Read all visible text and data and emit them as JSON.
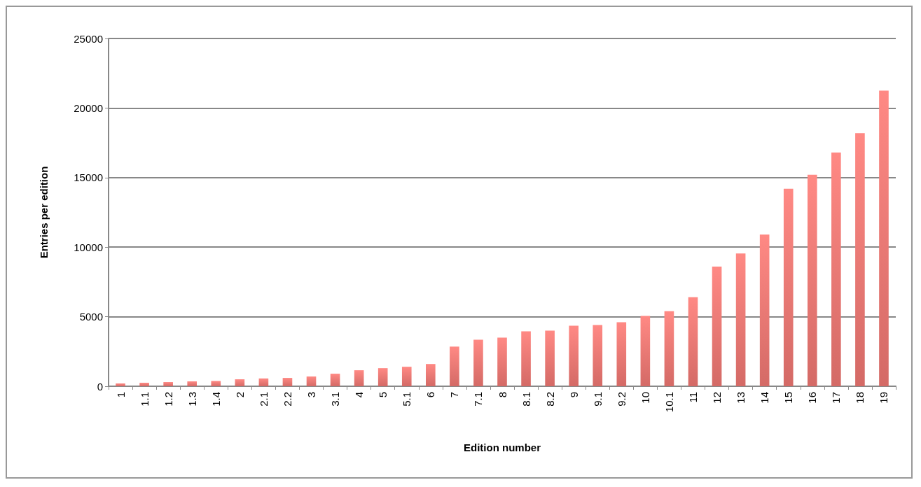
{
  "chart_data": {
    "type": "bar",
    "xlabel": "Edition number",
    "ylabel": "Entries per edition",
    "categories": [
      "1",
      "1.1",
      "1.2",
      "1.3",
      "1.4",
      "2",
      "2.1",
      "2.2",
      "3",
      "3.1",
      "4",
      "5",
      "5.1",
      "6",
      "7",
      "7.1",
      "8",
      "8.1",
      "8.2",
      "9",
      "9.1",
      "9.2",
      "10",
      "10.1",
      "11",
      "12",
      "13",
      "14",
      "15",
      "16",
      "17",
      "18",
      "19"
    ],
    "values": [
      200,
      250,
      300,
      350,
      380,
      500,
      560,
      600,
      700,
      900,
      1150,
      1300,
      1400,
      1600,
      2850,
      3350,
      3500,
      3950,
      4000,
      4350,
      4400,
      4600,
      5050,
      5400,
      6400,
      8600,
      9550,
      10900,
      14200,
      15200,
      16800,
      18200,
      21250
    ],
    "color": "#d46a66",
    "ylim": [
      0,
      25000
    ],
    "yticks": [
      0,
      5000,
      10000,
      15000,
      20000,
      25000
    ],
    "grid": "y"
  }
}
